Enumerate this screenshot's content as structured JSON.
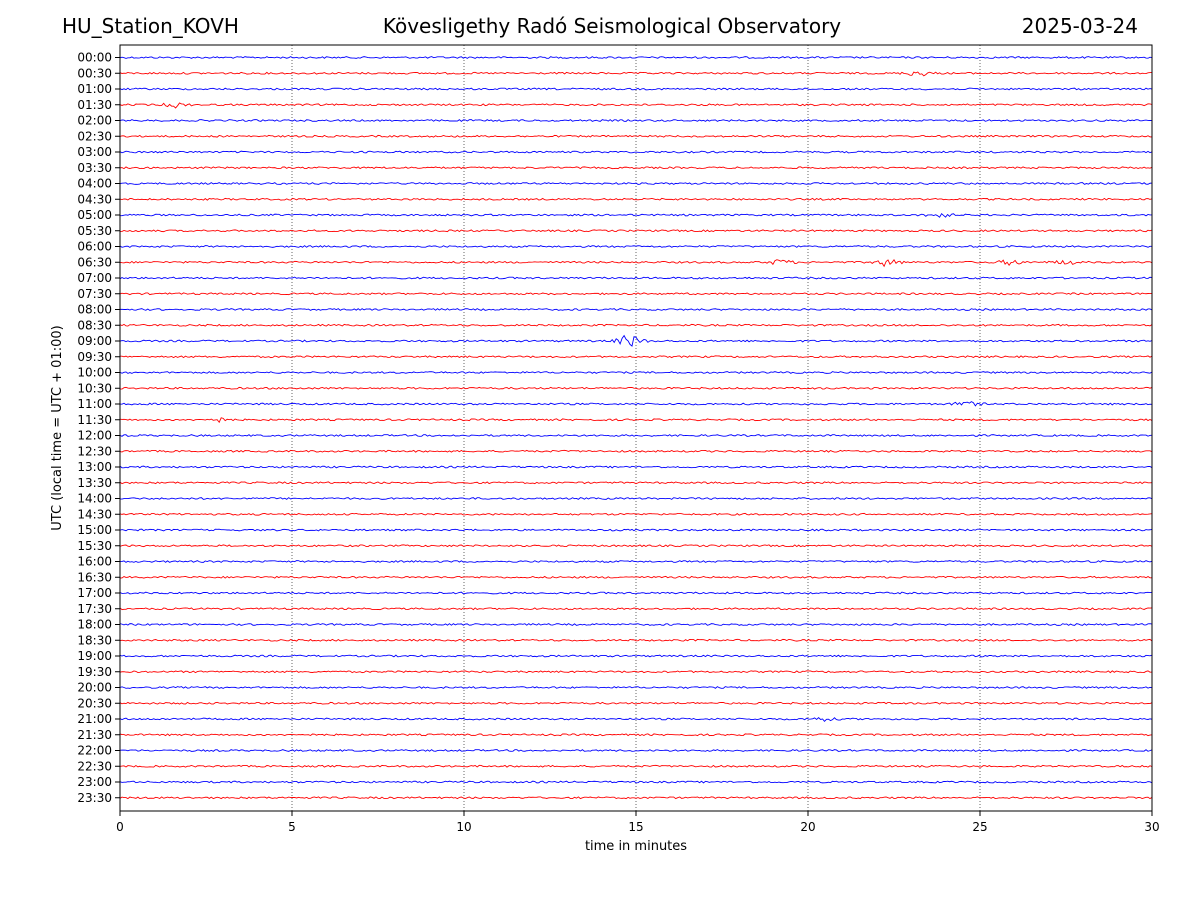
{
  "header": {
    "station": "HU_Station_KOVH",
    "observatory": "Kövesligethy Radó Seismological Observatory",
    "date": "2025-03-24"
  },
  "chart_data": {
    "type": "line",
    "subtype": "helicorder",
    "title": "Kövesligethy Radó Seismological Observatory",
    "xlabel": "time in minutes",
    "ylabel": "UTC (local time = UTC + 01:00)",
    "xlim": [
      0,
      30
    ],
    "xticks": [
      0,
      5,
      10,
      15,
      20,
      25,
      30
    ],
    "grid": "vertical dotted lines at x ticks",
    "colors": {
      "even_rows": "#0000ff",
      "odd_rows": "#ff0000"
    },
    "rows": [
      "00:00",
      "00:30",
      "01:00",
      "01:30",
      "02:00",
      "02:30",
      "03:00",
      "03:30",
      "04:00",
      "04:30",
      "05:00",
      "05:30",
      "06:00",
      "06:30",
      "07:00",
      "07:30",
      "08:00",
      "08:30",
      "09:00",
      "09:30",
      "10:00",
      "10:30",
      "11:00",
      "11:30",
      "12:00",
      "12:30",
      "13:00",
      "13:30",
      "14:00",
      "14:30",
      "15:00",
      "15:30",
      "16:00",
      "16:30",
      "17:00",
      "17:30",
      "18:00",
      "18:30",
      "19:00",
      "19:30",
      "20:00",
      "20:30",
      "21:00",
      "21:30",
      "22:00",
      "22:30",
      "23:00",
      "23:30"
    ],
    "events": [
      {
        "row": "00:30",
        "minute": 23.2,
        "amplitude": 1.8
      },
      {
        "row": "05:00",
        "minute": 23.8,
        "amplitude": 1.6
      },
      {
        "row": "06:30",
        "minute": 19.2,
        "amplitude": 1.6
      },
      {
        "row": "06:30",
        "minute": 22.3,
        "amplitude": 2.2
      },
      {
        "row": "06:30",
        "minute": 25.9,
        "amplitude": 1.6
      },
      {
        "row": "06:30",
        "minute": 27.5,
        "amplitude": 1.3
      },
      {
        "row": "09:00",
        "minute": 14.8,
        "amplitude": 4.0
      },
      {
        "row": "11:00",
        "minute": 24.6,
        "amplitude": 1.6
      },
      {
        "row": "11:30",
        "minute": 2.8,
        "amplitude": 1.3
      },
      {
        "row": "01:30",
        "minute": 1.6,
        "amplitude": 1.2
      },
      {
        "row": "21:00",
        "minute": 20.4,
        "amplitude": 1.2
      }
    ]
  }
}
